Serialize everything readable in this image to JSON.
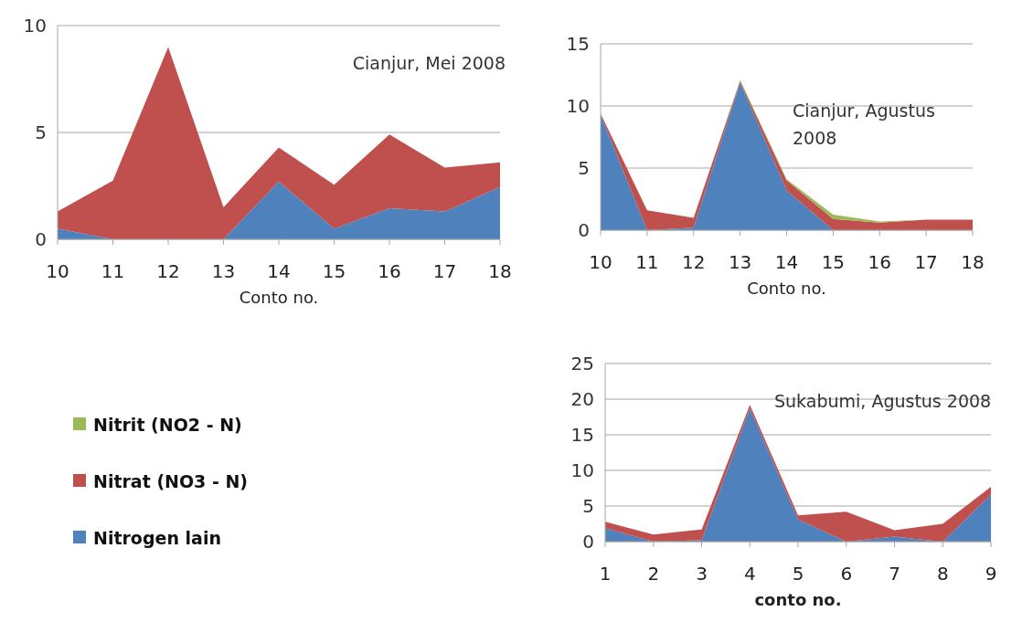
{
  "chart_data": [
    {
      "type": "area",
      "stacked": true,
      "categories": [
        "10",
        "11",
        "12",
        "13",
        "14",
        "15",
        "16",
        "17",
        "18"
      ],
      "xlabel": "Conto no.",
      "ylim": [
        0,
        10
      ],
      "yticks": [
        0,
        5,
        10
      ],
      "grid": "y",
      "annotations": [
        "Cianjur, Mei 2008"
      ],
      "series": [
        {
          "color": "#4f81bd",
          "values": [
            0.5,
            0,
            0,
            0,
            2.7,
            0.5,
            1.45,
            1.3,
            2.45
          ]
        },
        {
          "color": "#c0504d",
          "values": [
            0.8,
            2.75,
            9.0,
            1.5,
            1.6,
            2.05,
            3.45,
            2.05,
            1.15
          ]
        }
      ]
    },
    {
      "type": "area",
      "stacked": true,
      "categories": [
        "10",
        "11",
        "12",
        "13",
        "14",
        "15",
        "16",
        "17",
        "18"
      ],
      "xlabel": "Conto no.",
      "ylim": [
        0,
        15
      ],
      "yticks": [
        0,
        5,
        10,
        15
      ],
      "grid": "y",
      "legend": "bottom left",
      "annotations": [
        "Cianjur, Agustus 2008"
      ],
      "series": [
        {
          "name": "Nitrogen lain",
          "color": "#4f81bd",
          "values": [
            9.3,
            0,
            0.2,
            11.9,
            3.2,
            0,
            0,
            0,
            0
          ]
        },
        {
          "name": "Nitrat (NO3 - N)",
          "color": "#c0504d",
          "values": [
            0.1,
            1.6,
            0.8,
            0.1,
            0.8,
            0.9,
            0.6,
            0.85,
            0.85
          ]
        },
        {
          "name": "Nitrit (NO2 - N)",
          "color": "#9bbb59",
          "values": [
            0,
            0,
            0,
            0.1,
            0.1,
            0.35,
            0.1,
            0,
            0
          ]
        }
      ]
    },
    {
      "type": "area",
      "stacked": true,
      "categories": [
        "1",
        "2",
        "3",
        "4",
        "5",
        "6",
        "7",
        "8",
        "9"
      ],
      "xlabel": "conto no.",
      "ylim": [
        0,
        25
      ],
      "yticks": [
        0,
        5,
        10,
        15,
        20,
        25
      ],
      "grid": "y",
      "annotations": [
        "Sukabumi, Agustus 2008"
      ],
      "series": [
        {
          "color": "#4f81bd",
          "values": [
            1.9,
            0,
            0.2,
            18.7,
            3.1,
            0,
            0.7,
            0,
            6.6
          ]
        },
        {
          "color": "#c0504d",
          "values": [
            0.9,
            1.0,
            1.5,
            0.5,
            0.6,
            4.2,
            0.9,
            2.5,
            1.1
          ]
        }
      ]
    }
  ]
}
